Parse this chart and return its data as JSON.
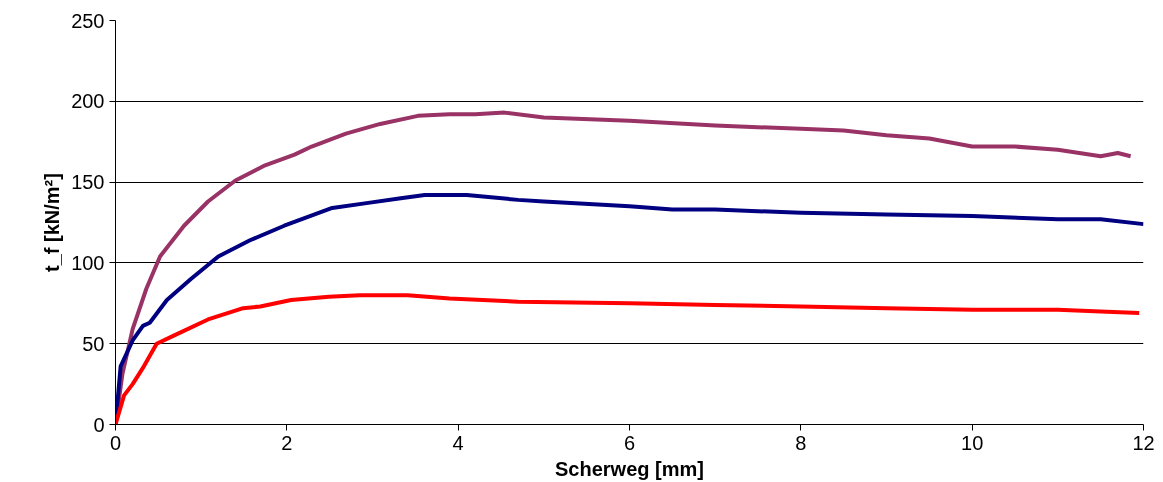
{
  "chart_data": {
    "type": "line",
    "xlabel": "Scherweg [mm]",
    "ylabel": "t_f [kN/m²]",
    "xlim": [
      0,
      12
    ],
    "ylim": [
      0,
      250
    ],
    "xticks": [
      0,
      2,
      4,
      6,
      8,
      10,
      12
    ],
    "yticks": [
      0,
      50,
      100,
      150,
      200,
      250
    ],
    "grid": "y",
    "marker": "none",
    "line_style": "solid",
    "series": [
      {
        "color": "#993366",
        "x": [
          0,
          0.08,
          0.2,
          0.36,
          0.52,
          0.8,
          1.08,
          1.4,
          1.73,
          2.09,
          2.29,
          2.69,
          3.09,
          3.53,
          3.9,
          4.2,
          4.54,
          5,
          6,
          7,
          8,
          8.5,
          9,
          9.5,
          10,
          10.5,
          11,
          11.5,
          11.7,
          11.85
        ],
        "values": [
          0,
          31,
          59,
          84,
          104,
          123,
          138,
          151,
          160,
          167,
          172,
          180,
          186,
          191,
          192,
          192,
          193,
          190,
          188,
          185,
          183,
          182,
          179,
          177,
          172,
          172,
          170,
          166,
          168,
          166
        ]
      },
      {
        "color": "#000080",
        "x": [
          0,
          0.06,
          0.2,
          0.32,
          0.4,
          0.6,
          0.88,
          1.2,
          1.57,
          1.97,
          2.53,
          2.93,
          3.33,
          3.61,
          4.1,
          4.7,
          5,
          6,
          6.5,
          7,
          8,
          9,
          10,
          11,
          11.5,
          12
        ],
        "values": [
          0,
          36,
          52,
          61,
          63,
          77,
          90,
          104,
          114,
          123,
          134,
          137,
          140,
          142,
          142,
          139,
          138,
          135,
          133,
          133,
          131,
          130,
          129,
          127,
          127,
          124
        ]
      },
      {
        "color": "#ff0000",
        "x": [
          0,
          0.1,
          0.2,
          0.32,
          0.48,
          0.68,
          1.08,
          1.49,
          1.69,
          2.05,
          2.49,
          2.85,
          3.41,
          3.9,
          4.7,
          6,
          7,
          8,
          9,
          10,
          11,
          11.5,
          11.95
        ],
        "values": [
          0,
          18,
          25,
          35,
          50,
          55,
          65,
          72,
          73,
          77,
          79,
          80,
          80,
          78,
          76,
          75,
          74,
          73,
          72,
          71,
          71,
          70,
          69
        ]
      }
    ]
  }
}
